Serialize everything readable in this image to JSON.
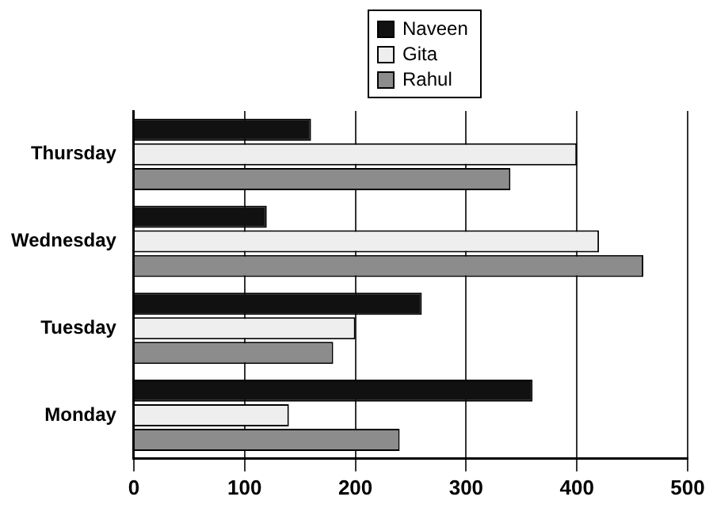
{
  "chart_data": {
    "type": "bar",
    "orientation": "horizontal",
    "categories": [
      "Thursday",
      "Wednesday",
      "Tuesday",
      "Monday"
    ],
    "series": [
      {
        "name": "Naveen",
        "color": "#111111",
        "values": [
          160,
          120,
          260,
          360
        ]
      },
      {
        "name": "Gita",
        "color": "#eeeeee",
        "values": [
          400,
          420,
          200,
          140
        ]
      },
      {
        "name": "Rahul",
        "color": "#8c8c8c",
        "values": [
          340,
          460,
          180,
          240
        ]
      }
    ],
    "xlim": [
      0,
      500
    ],
    "xticks": [
      0,
      100,
      200,
      300,
      400,
      500
    ],
    "grid": "x",
    "legend": "top"
  }
}
